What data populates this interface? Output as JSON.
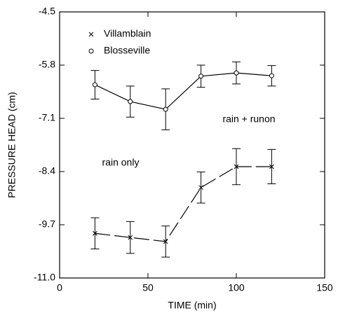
{
  "chart_data": {
    "type": "line",
    "xlabel": "TIME (min)",
    "ylabel": "PRESSURE HEAD (cm)",
    "x": [
      20,
      40,
      60,
      80,
      100,
      120
    ],
    "series": [
      {
        "name": "Villamblain",
        "color": "#000000",
        "marker": "x",
        "linestyle": "dashed",
        "values": [
          -9.91,
          -10.01,
          -10.11,
          -8.79,
          -8.28,
          -8.28
        ],
        "errors": [
          0.38,
          0.39,
          0.38,
          0.38,
          0.44,
          0.42
        ]
      },
      {
        "name": "Blosseville",
        "color": "#000000",
        "marker": "o",
        "linestyle": "solid",
        "values": [
          -6.28,
          -6.69,
          -6.88,
          -6.07,
          -5.99,
          -6.06
        ],
        "errors": [
          0.35,
          0.38,
          0.5,
          0.27,
          0.27,
          0.25
        ]
      }
    ],
    "annotations": [
      "rain + runon",
      "rain only"
    ],
    "xlim": [
      0,
      150
    ],
    "xticks": [
      0,
      50,
      100,
      150
    ],
    "ylim": [
      -11,
      -4.5
    ],
    "yticks": [
      {
        "value": -11,
        "label": "-11.0"
      },
      -9.7,
      -8.4,
      -7.1,
      -5.8,
      -4.5
    ],
    "legend": "upper left",
    "grid": false
  }
}
